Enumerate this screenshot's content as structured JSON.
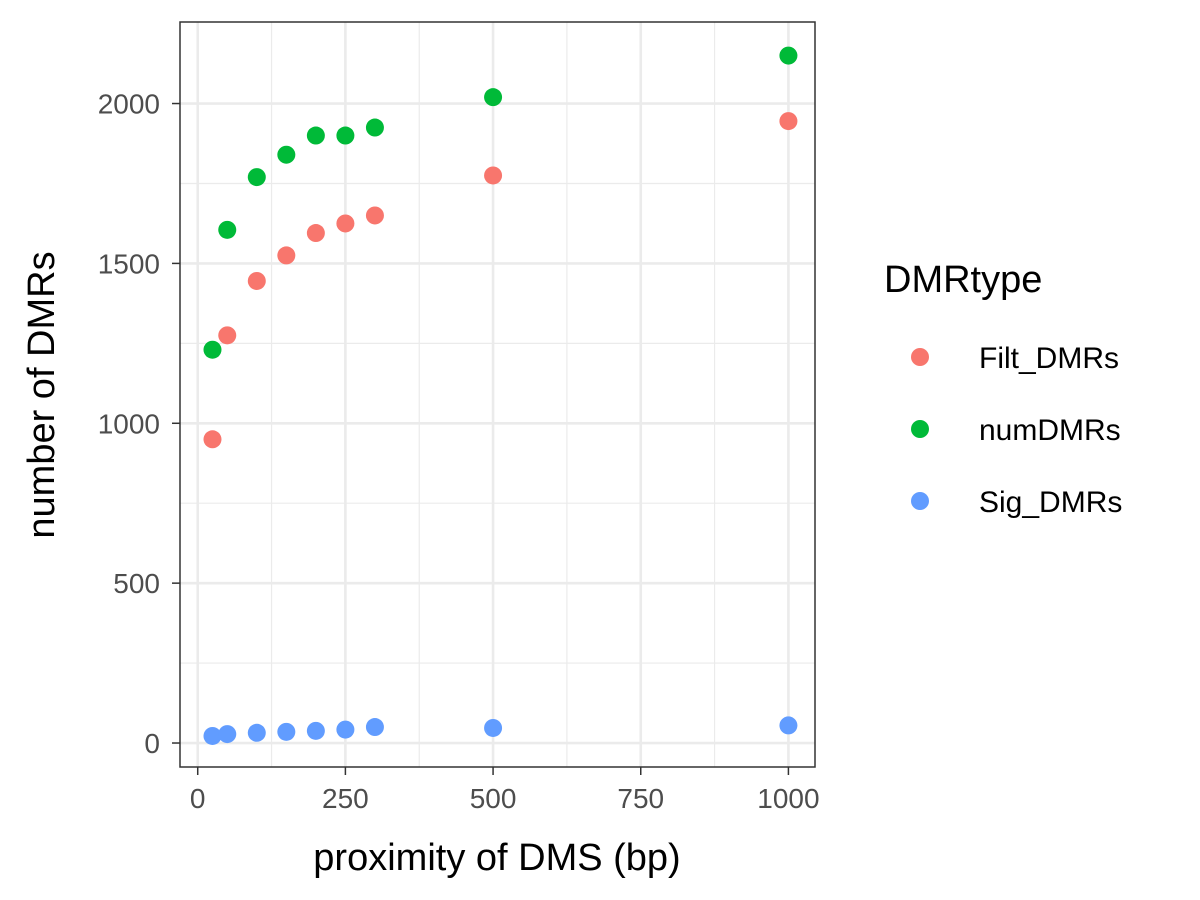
{
  "chart_data": {
    "type": "scatter",
    "title": "",
    "xlabel": "proximity of DMS (bp)",
    "ylabel": "number of DMRs",
    "xlim": [
      -30,
      1045
    ],
    "ylim": [
      -75,
      2255
    ],
    "x_ticks": [
      0,
      250,
      500,
      750,
      1000
    ],
    "x_tick_labels": [
      "0",
      "250",
      "500",
      "750",
      "1000"
    ],
    "x_minor_ticks": [
      125,
      375,
      625,
      875
    ],
    "y_ticks": [
      0,
      500,
      1000,
      1500,
      2000
    ],
    "y_tick_labels": [
      "0",
      "500",
      "1000",
      "1500",
      "2000"
    ],
    "y_minor_ticks": [
      250,
      750,
      1250,
      1750
    ],
    "grid": true,
    "x": [
      25,
      50,
      100,
      150,
      200,
      250,
      300,
      500,
      1000
    ],
    "series": [
      {
        "name": "Filt_DMRs",
        "color": "#F8766D",
        "values": [
          950,
          1275,
          1445,
          1525,
          1595,
          1625,
          1650,
          1775,
          1945
        ]
      },
      {
        "name": "numDMRs",
        "color": "#00BA38",
        "values": [
          1230,
          1605,
          1770,
          1840,
          1900,
          1900,
          1925,
          2020,
          2150
        ]
      },
      {
        "name": "Sig_DMRs",
        "color": "#619CFF",
        "values": [
          22,
          28,
          32,
          35,
          38,
          42,
          50,
          47,
          55
        ]
      }
    ],
    "legend": {
      "title": "DMRtype",
      "position": "right"
    }
  }
}
